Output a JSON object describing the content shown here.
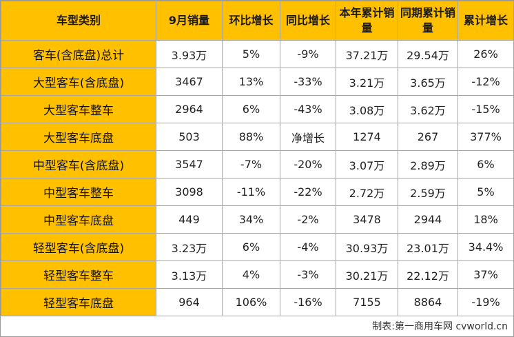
{
  "table": {
    "headers": [
      "车型类别",
      "9月销量",
      "环比增长",
      "同比增长",
      "本年累计销量",
      "同期累计销量",
      "累计增长"
    ],
    "rows": [
      [
        "客车(含底盘)总计",
        "3.93万",
        "5%",
        "-9%",
        "37.21万",
        "29.54万",
        "26%"
      ],
      [
        "大型客车(含底盘)",
        "3467",
        "13%",
        "-33%",
        "3.21万",
        "3.65万",
        "-12%"
      ],
      [
        "大型客车整车",
        "2964",
        "6%",
        "-43%",
        "3.08万",
        "3.62万",
        "-15%"
      ],
      [
        "大型客车底盘",
        "503",
        "88%",
        "净增长",
        "1274",
        "267",
        "377%"
      ],
      [
        "中型客车(含底盘)",
        "3547",
        "-7%",
        "-20%",
        "3.07万",
        "2.89万",
        "6%"
      ],
      [
        "中型客车整车",
        "3098",
        "-11%",
        "-22%",
        "2.72万",
        "2.59万",
        "5%"
      ],
      [
        "中型客车底盘",
        "449",
        "34%",
        "-2%",
        "3478",
        "2944",
        "18%"
      ],
      [
        "轻型客车(含底盘)",
        "3.23万",
        "6%",
        "-4%",
        "30.93万",
        "23.01万",
        "34.4%"
      ],
      [
        "轻型客车整车",
        "3.13万",
        "4%",
        "-3%",
        "30.21万",
        "22.12万",
        "37%"
      ],
      [
        "轻型客车底盘",
        "964",
        "106%",
        "-16%",
        "7155",
        "8864",
        "-19%"
      ]
    ]
  },
  "footer": {
    "credit": "制表:第一商用车网 cvworld.cn"
  },
  "colors": {
    "header_bg": "#ffc000",
    "category_bg": "#ffc000",
    "border": "#a6a6a6"
  }
}
